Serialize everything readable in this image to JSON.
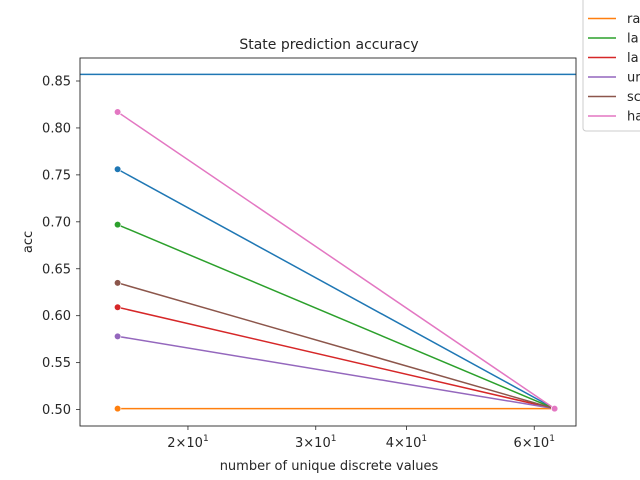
{
  "chart_data": {
    "type": "line",
    "title": "State prediction accuracy",
    "xlabel": "number of unique discrete values",
    "ylabel": "acc",
    "xscale": "log",
    "xlim": [
      14.2,
      68.5
    ],
    "ylim": [
      0.4825,
      0.8745
    ],
    "x_ticks": [
      {
        "value": 20,
        "base": "2",
        "exp": "1"
      },
      {
        "value": 30,
        "base": "3",
        "exp": "1"
      },
      {
        "value": 40,
        "base": "4",
        "exp": "1"
      },
      {
        "value": 60,
        "base": "6",
        "exp": "1"
      }
    ],
    "y_ticks": [
      "0.50",
      "0.55",
      "0.60",
      "0.65",
      "0.70",
      "0.75",
      "0.80",
      "0.85"
    ],
    "grid": false,
    "legend_placement": "upper-right, outside plot (clipped)",
    "hline": {
      "y": 0.857,
      "color": "#1f77b4"
    },
    "x": [
      16,
      64
    ],
    "series": [
      {
        "name": "",
        "color": "#1f77b4",
        "values": [
          0.756,
          0.501
        ]
      },
      {
        "name": "ra",
        "color": "#ff7f0e",
        "values": [
          0.501,
          0.501
        ]
      },
      {
        "name": "la",
        "color": "#2ca02c",
        "values": [
          0.697,
          0.501
        ]
      },
      {
        "name": "la",
        "color": "#d62728",
        "values": [
          0.609,
          0.501
        ]
      },
      {
        "name": "ur",
        "color": "#9467bd",
        "values": [
          0.578,
          0.501
        ]
      },
      {
        "name": "sc",
        "color": "#8c564b",
        "values": [
          0.635,
          0.501
        ]
      },
      {
        "name": "ha",
        "color": "#e377c2",
        "values": [
          0.817,
          0.501
        ]
      }
    ]
  }
}
